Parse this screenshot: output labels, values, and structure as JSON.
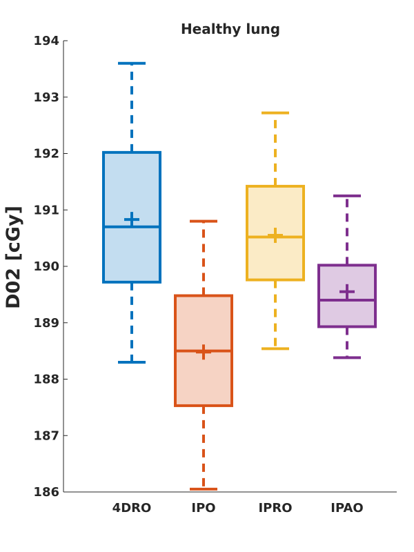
{
  "chart_data": {
    "type": "box",
    "title": "Healthy lung",
    "xlabel": "",
    "ylabel": "D02 [cGy]",
    "ylim": [
      186,
      194
    ],
    "yticks": [
      186,
      187,
      188,
      189,
      190,
      191,
      192,
      193,
      194
    ],
    "grid": false,
    "legend": "none",
    "categories": [
      "4DRO",
      "IPO",
      "IPRO",
      "IPAO"
    ],
    "series": [
      {
        "category": "4DRO",
        "whisker_low": 188.3,
        "q1": 189.72,
        "median": 190.7,
        "q3": 192.02,
        "whisker_high": 193.6,
        "mean": 190.83,
        "color": "#0072BD",
        "fill": "#C3DDF0"
      },
      {
        "category": "IPO",
        "whisker_low": 186.05,
        "q1": 187.53,
        "median": 188.5,
        "q3": 189.48,
        "whisker_high": 190.8,
        "mean": 188.48,
        "color": "#D95319",
        "fill": "#F6D3C4"
      },
      {
        "category": "IPRO",
        "whisker_low": 188.54,
        "q1": 189.76,
        "median": 190.52,
        "q3": 191.42,
        "whisker_high": 192.72,
        "mean": 190.55,
        "color": "#EDB120",
        "fill": "#FBEBC6"
      },
      {
        "category": "IPAO",
        "whisker_low": 188.38,
        "q1": 188.93,
        "median": 189.4,
        "q3": 190.02,
        "whisker_high": 191.25,
        "mean": 189.55,
        "color": "#7E2F8E",
        "fill": "#DFCAE3"
      }
    ]
  }
}
